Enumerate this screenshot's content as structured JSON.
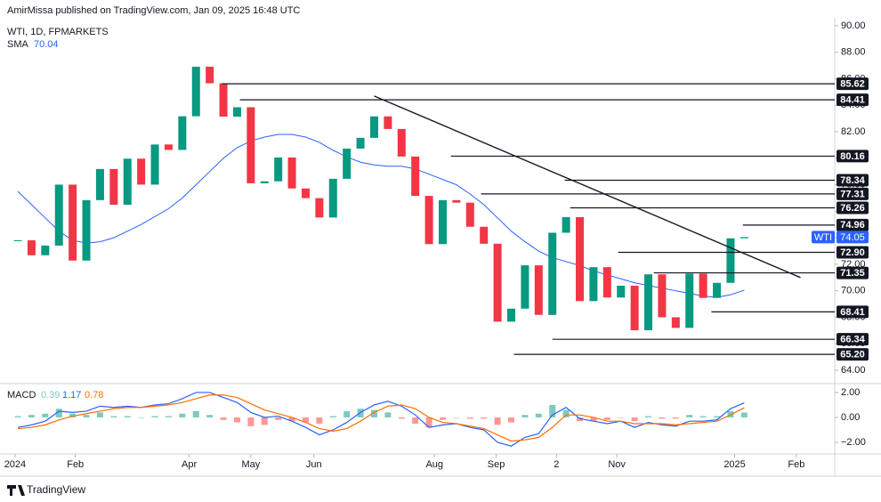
{
  "header": "AmirMissa published on TradingView.com, Jan 09, 2025 16:48 UTC",
  "footer": "TradingView",
  "chart_data": {
    "type": "candlestick",
    "title": "WTI, 1D, FPMARKETS",
    "symbol": "WTI",
    "categories": [
      null,
      null,
      null,
      null,
      null,
      null,
      null,
      null,
      null,
      null,
      null,
      null,
      null,
      null,
      null,
      null,
      null,
      null,
      null,
      null,
      null,
      null,
      null,
      null,
      null,
      null,
      null,
      null,
      null,
      null,
      null,
      null,
      null,
      null,
      null,
      null,
      null,
      null,
      null,
      null,
      null,
      null,
      null,
      null,
      null,
      null,
      null,
      null,
      null,
      null,
      null,
      null,
      null,
      null
    ],
    "close": [
      73.81,
      72.68,
      73.41,
      78.01,
      72.28,
      76.84,
      79.19,
      76.49,
      79.97,
      78.01,
      81.04,
      80.63,
      83.17,
      86.91,
      85.66,
      83.14,
      83.85,
      78.11,
      78.26,
      80.06,
      77.72,
      76.99,
      75.53,
      78.45,
      80.73,
      81.54,
      83.16,
      82.21,
      80.13,
      77.16,
      73.52,
      76.84,
      76.65,
      74.83,
      73.55,
      67.67,
      68.65,
      71.92,
      68.18,
      74.38,
      75.56,
      69.22,
      71.78,
      69.49,
      70.38,
      67.02,
      71.24,
      68.0,
      67.2,
      71.29,
      69.46,
      70.6,
      73.96,
      74.05
    ],
    "up_color": "#089981",
    "down_color": "#f23645",
    "sma": {
      "name": "SMA",
      "color": "#2962ff",
      "values": [
        77.5,
        76.5,
        75.5,
        74.5,
        73.8,
        73.6,
        73.7,
        74.0,
        74.5,
        75.0,
        75.6,
        76.2,
        77.0,
        78.0,
        79.0,
        80.0,
        80.8,
        81.3,
        81.6,
        81.8,
        81.8,
        81.6,
        81.2,
        80.6,
        80.1,
        79.7,
        79.5,
        79.4,
        79.4,
        79.2,
        78.8,
        78.4,
        78.0,
        77.3,
        76.5,
        75.5,
        74.5,
        73.7,
        73.0,
        72.5,
        72.2,
        71.9,
        71.5,
        71.2,
        70.9,
        70.6,
        70.4,
        70.2,
        70.0,
        69.8,
        69.6,
        69.5,
        69.7,
        70.04
      ]
    },
    "levels": [
      {
        "value": 85.62,
        "label": "85.62",
        "from": 14.9
      },
      {
        "value": 84.41,
        "label": "84.41",
        "from": 16.2
      },
      {
        "value": 80.16,
        "label": "80.16",
        "from": 31.6
      },
      {
        "value": 78.34,
        "label": "78.34",
        "from": 39.9
      },
      {
        "value": 77.31,
        "label": "77.31",
        "from": 33.8
      },
      {
        "value": 76.26,
        "label": "76.26",
        "from": 40.3
      },
      {
        "value": 74.96,
        "label": "74.96",
        "from": 52.9
      },
      {
        "value": 72.9,
        "label": "72.90",
        "from": 43.8
      },
      {
        "value": 71.35,
        "label": "71.35",
        "from": 46.4
      },
      {
        "value": 68.41,
        "label": "68.41",
        "from": 50.6
      },
      {
        "value": 66.34,
        "label": "66.34",
        "from": 39.0
      },
      {
        "value": 65.2,
        "label": "65.20",
        "from": 36.2
      }
    ],
    "trendline": {
      "x": [
        26.0,
        57.1
      ],
      "y": [
        84.7,
        71.0
      ]
    },
    "xlim": [
      -1.3,
      59.6
    ],
    "xticks": [
      {
        "value": -0.2,
        "label": "2024"
      },
      {
        "value": 4.2,
        "label": "Feb"
      },
      {
        "value": 12.5,
        "label": "Apr"
      },
      {
        "value": 17.0,
        "label": "May"
      },
      {
        "value": 21.6,
        "label": "Jun"
      },
      {
        "value": 30.4,
        "label": "Aug"
      },
      {
        "value": 34.9,
        "label": "Sep"
      },
      {
        "value": 39.3,
        "label": "2"
      },
      {
        "value": 43.7,
        "label": "Nov"
      },
      {
        "value": 52.3,
        "label": "2025"
      },
      {
        "value": 56.8,
        "label": "Feb"
      }
    ],
    "ylim": [
      63.06,
      90.6
    ],
    "yticks": [
      {
        "value": 64,
        "label": "64.00"
      },
      {
        "value": 66,
        "label": "66.00"
      },
      {
        "value": 68,
        "label": "68.00"
      },
      {
        "value": 70,
        "label": "70.00"
      },
      {
        "value": 72,
        "label": "72.00"
      },
      {
        "value": 74,
        "label": "74.00"
      },
      {
        "value": 76,
        "label": "76.00"
      },
      {
        "value": 78,
        "label": "78.00"
      },
      {
        "value": 80,
        "label": "80.00"
      },
      {
        "value": 82,
        "label": "82.00"
      },
      {
        "value": 84,
        "label": "84.00"
      },
      {
        "value": 86,
        "label": "86.00"
      },
      {
        "value": 88,
        "label": "88.00"
      },
      {
        "value": 90,
        "label": "90.00"
      }
    ],
    "macd": {
      "name": "MACD",
      "ylim": [
        -2.93,
        2.64
      ],
      "yticks": [
        {
          "value": 2,
          "label": "2.00"
        },
        {
          "value": 0,
          "label": "0.00"
        },
        {
          "value": -2,
          "label": "−2.00"
        }
      ],
      "histogram": {
        "color_up": "#26a69a",
        "color_down": "#ff5252",
        "label_color": "#80cbc4",
        "values": [
          0.1,
          0.2,
          0.3,
          0.7,
          0.3,
          0.2,
          0.4,
          0.1,
          0.1,
          0.0,
          0.1,
          0.1,
          0.3,
          0.5,
          0.2,
          -0.2,
          -0.4,
          -0.7,
          -0.6,
          -0.2,
          -0.3,
          -0.4,
          -0.5,
          0.1,
          0.5,
          0.7,
          0.6,
          0.4,
          -0.1,
          -0.5,
          -0.8,
          -0.2,
          0.0,
          -0.1,
          -0.1,
          -0.6,
          -0.4,
          0.2,
          0.3,
          1.0,
          0.6,
          -0.3,
          -0.3,
          -0.2,
          0.0,
          -0.3,
          0.1,
          -0.1,
          -0.1,
          0.2,
          0.1,
          0.1,
          0.5,
          0.39
        ]
      },
      "series": [
        {
          "color": "#2962ff",
          "values": [
            -0.8,
            -0.6,
            -0.3,
            0.5,
            0.4,
            0.5,
            0.9,
            0.8,
            0.9,
            0.8,
            1.0,
            1.1,
            1.5,
            2.0,
            2.0,
            1.6,
            1.2,
            0.4,
            0.0,
            0.1,
            -0.3,
            -0.8,
            -1.4,
            -1.0,
            -0.4,
            0.4,
            1.0,
            1.3,
            0.9,
            0.2,
            -0.8,
            -0.6,
            -0.5,
            -0.8,
            -1.0,
            -2.0,
            -2.3,
            -1.6,
            -1.3,
            0.2,
            0.8,
            -0.1,
            -0.3,
            -0.5,
            -0.3,
            -0.8,
            -0.4,
            -0.6,
            -0.7,
            -0.3,
            -0.3,
            -0.2,
            0.7,
            1.17
          ]
        },
        {
          "color": "#ff6d00",
          "values": [
            -0.9,
            -0.8,
            -0.6,
            -0.2,
            0.1,
            0.3,
            0.5,
            0.7,
            0.8,
            0.8,
            0.9,
            1.0,
            1.2,
            1.5,
            1.8,
            1.8,
            1.6,
            1.1,
            0.6,
            0.3,
            0.0,
            -0.4,
            -0.9,
            -1.1,
            -0.9,
            -0.3,
            0.4,
            0.9,
            1.0,
            0.7,
            0.0,
            -0.4,
            -0.5,
            -0.7,
            -0.9,
            -1.4,
            -1.9,
            -1.8,
            -1.6,
            -0.8,
            0.2,
            0.2,
            0.0,
            -0.3,
            -0.3,
            -0.5,
            -0.5,
            -0.5,
            -0.6,
            -0.5,
            -0.4,
            -0.3,
            0.2,
            0.78
          ]
        }
      ]
    }
  }
}
